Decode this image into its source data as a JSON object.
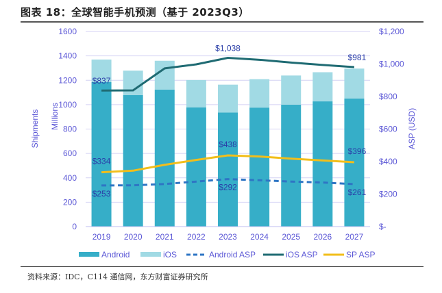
{
  "header": {
    "title": "图表 18：全球智能手机预测（基于 2023Q3）"
  },
  "footer": {
    "source": "资料来源：IDC，C114 通信网，东方财富证券研究所"
  },
  "colors": {
    "android": "#36aec8",
    "ios": "#a1dae4",
    "android_asp": "#2e75c4",
    "ios_asp": "#1f6b73",
    "sp_asp": "#f2be1a",
    "grid": "#d4d2f4",
    "axis_text": "#5b57d6",
    "label_text": "#2a3ea8"
  },
  "chart_data": {
    "type": "bar",
    "title": "全球智能手机预测（基于 2023Q3）",
    "categories": [
      "2019",
      "2020",
      "2021",
      "2022",
      "2023",
      "2024",
      "2025",
      "2026",
      "2027"
    ],
    "stacked": true,
    "left_axis": {
      "label_outer": "Shipments",
      "label_inner": "Millions",
      "ylim": [
        0,
        1600
      ],
      "ticks": [
        "0",
        "200",
        "400",
        "600",
        "800",
        "1000",
        "1200",
        "1400",
        "1600"
      ]
    },
    "right_axis": {
      "label": "ASP (USD)",
      "ylim": [
        0,
        1200
      ],
      "ticks": [
        "$-",
        "$200",
        "$400",
        "$600",
        "$800",
        "$1,000",
        "$1,200"
      ]
    },
    "grid": true,
    "legend_position": "bottom",
    "series": [
      {
        "name": "Android",
        "kind": "bar",
        "axis": "left",
        "values": [
          1185,
          1079,
          1124,
          977,
          936,
          976,
          1000,
          1027,
          1051
        ]
      },
      {
        "name": "iOS",
        "kind": "bar",
        "axis": "left",
        "values": [
          185,
          200,
          236,
          225,
          228,
          233,
          239,
          239,
          245
        ]
      },
      {
        "name": "Android ASP",
        "kind": "line-dashed",
        "axis": "right",
        "values": [
          253,
          254,
          262,
          277,
          292,
          285,
          277,
          271,
          261
        ]
      },
      {
        "name": "iOS ASP",
        "kind": "line",
        "axis": "right",
        "values": [
          837,
          838,
          973,
          998,
          1038,
          1026,
          1009,
          994,
          981
        ]
      },
      {
        "name": "SP ASP",
        "kind": "line",
        "axis": "right",
        "values": [
          334,
          344,
          380,
          410,
          438,
          431,
          418,
          407,
          396
        ]
      }
    ],
    "annotations": [
      {
        "series": "iOS ASP",
        "category": "2019",
        "text": "$837"
      },
      {
        "series": "iOS ASP",
        "category": "2023",
        "text": "$1,038"
      },
      {
        "series": "iOS ASP",
        "category": "2027",
        "text": "$981"
      },
      {
        "series": "SP ASP",
        "category": "2019",
        "text": "$334"
      },
      {
        "series": "SP ASP",
        "category": "2023",
        "text": "$438"
      },
      {
        "series": "SP ASP",
        "category": "2027",
        "text": "$396"
      },
      {
        "series": "Android ASP",
        "category": "2019",
        "text": "$253"
      },
      {
        "series": "Android ASP",
        "category": "2023",
        "text": "$292"
      },
      {
        "series": "Android ASP",
        "category": "2027",
        "text": "$261"
      }
    ]
  }
}
